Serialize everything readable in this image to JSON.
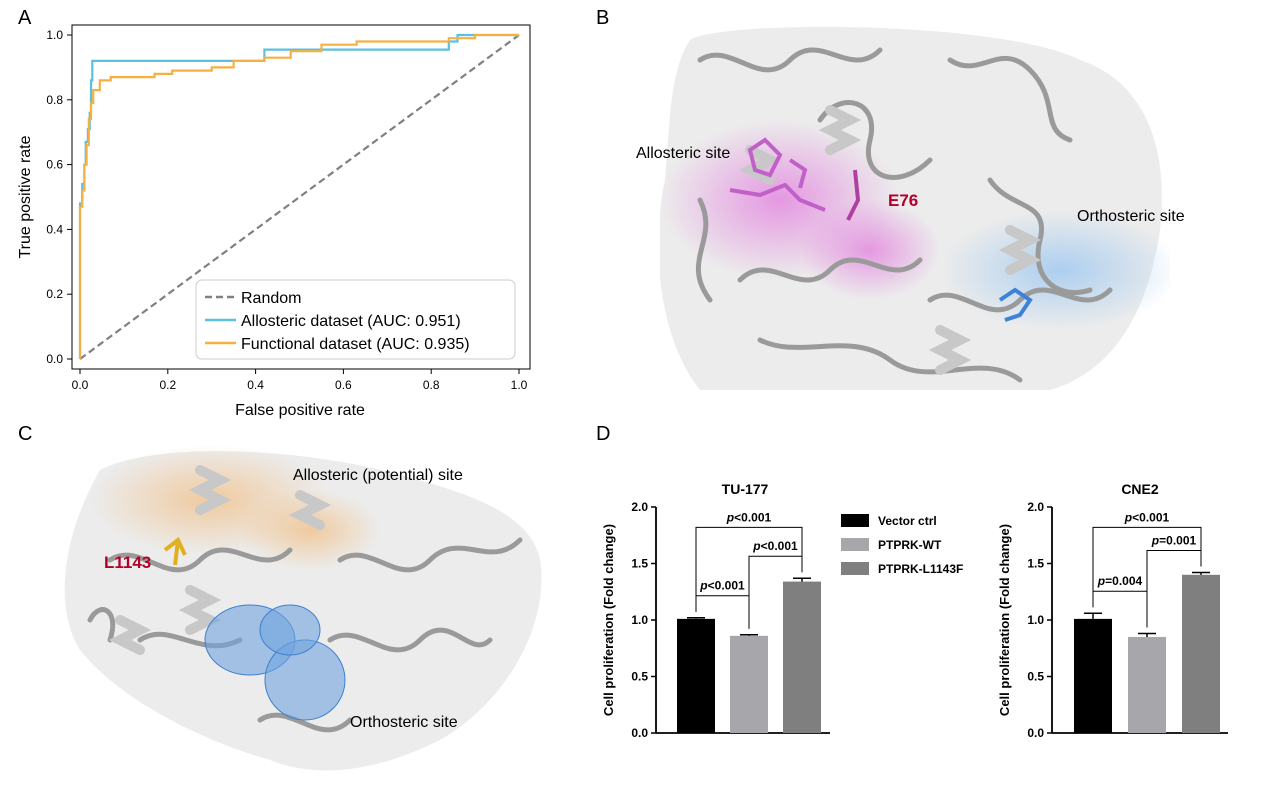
{
  "panels": {
    "a": "A",
    "b": "B",
    "c": "C",
    "d": "D"
  },
  "structure_b": {
    "allosteric_label": "Allosteric site",
    "residue_label": "E76",
    "orthosteric_label": "Orthosteric site",
    "colors": {
      "allosteric": "#e48ee0",
      "orthosteric": "#a9cdf0",
      "ligand": "#c060c8",
      "residue": "#b2002b"
    }
  },
  "structure_c": {
    "allosteric_label": "Allosteric (potential) site",
    "residue_label": "L1143",
    "orthosteric_label": "Orthosteric site",
    "colors": {
      "allosteric": "#f3d6b3",
      "orthosteric": "#3e7fd0",
      "residue": "#b2002b"
    }
  },
  "chart_data": [
    {
      "type": "line",
      "panel": "A",
      "xlabel": "False positive rate",
      "ylabel": "True positive rate",
      "xlim": [
        0,
        1
      ],
      "ylim": [
        0,
        1
      ],
      "xticks": [
        "0.0",
        "0.2",
        "0.4",
        "0.6",
        "0.8",
        "1.0"
      ],
      "yticks": [
        "0.0",
        "0.2",
        "0.4",
        "0.6",
        "0.8",
        "1.0"
      ],
      "legend_position": "lower-right",
      "series": [
        {
          "name": "Random",
          "color": "#808080",
          "style": "dashed",
          "points": [
            [
              0,
              0
            ],
            [
              1,
              1
            ]
          ]
        },
        {
          "name": "Allosteric dataset (AUC: 0.951)",
          "color": "#5bc0de",
          "style": "solid",
          "points": [
            [
              0,
              0
            ],
            [
              0,
              0.48
            ],
            [
              0.005,
              0.48
            ],
            [
              0.005,
              0.54
            ],
            [
              0.01,
              0.54
            ],
            [
              0.01,
              0.6
            ],
            [
              0.013,
              0.6
            ],
            [
              0.013,
              0.67
            ],
            [
              0.018,
              0.67
            ],
            [
              0.018,
              0.71
            ],
            [
              0.022,
              0.71
            ],
            [
              0.022,
              0.76
            ],
            [
              0.025,
              0.76
            ],
            [
              0.025,
              0.86
            ],
            [
              0.028,
              0.86
            ],
            [
              0.028,
              0.92
            ],
            [
              0.42,
              0.92
            ],
            [
              0.42,
              0.955
            ],
            [
              0.84,
              0.955
            ],
            [
              0.84,
              0.98
            ],
            [
              0.86,
              0.98
            ],
            [
              0.86,
              1.0
            ],
            [
              1,
              1
            ]
          ]
        },
        {
          "name": "Functional dataset (AUC: 0.935)",
          "color": "#f5b041",
          "style": "solid",
          "points": [
            [
              0,
              0
            ],
            [
              0,
              0.47
            ],
            [
              0.005,
              0.47
            ],
            [
              0.005,
              0.52
            ],
            [
              0.01,
              0.52
            ],
            [
              0.01,
              0.6
            ],
            [
              0.015,
              0.6
            ],
            [
              0.015,
              0.66
            ],
            [
              0.02,
              0.66
            ],
            [
              0.02,
              0.74
            ],
            [
              0.025,
              0.74
            ],
            [
              0.025,
              0.79
            ],
            [
              0.03,
              0.79
            ],
            [
              0.03,
              0.83
            ],
            [
              0.045,
              0.83
            ],
            [
              0.045,
              0.86
            ],
            [
              0.07,
              0.86
            ],
            [
              0.07,
              0.87
            ],
            [
              0.17,
              0.87
            ],
            [
              0.17,
              0.88
            ],
            [
              0.21,
              0.88
            ],
            [
              0.21,
              0.89
            ],
            [
              0.3,
              0.89
            ],
            [
              0.3,
              0.9
            ],
            [
              0.35,
              0.9
            ],
            [
              0.35,
              0.92
            ],
            [
              0.42,
              0.92
            ],
            [
              0.42,
              0.93
            ],
            [
              0.48,
              0.93
            ],
            [
              0.48,
              0.95
            ],
            [
              0.55,
              0.95
            ],
            [
              0.55,
              0.97
            ],
            [
              0.63,
              0.97
            ],
            [
              0.63,
              0.98
            ],
            [
              0.84,
              0.98
            ],
            [
              0.84,
              0.99
            ],
            [
              0.9,
              0.99
            ],
            [
              0.9,
              1.0
            ],
            [
              1,
              1
            ]
          ]
        }
      ]
    },
    {
      "type": "bar",
      "panel": "D",
      "title": "TU-177",
      "ylabel": "Cell proliferation (Fold change)",
      "ylim": [
        0,
        2
      ],
      "yticks": [
        "0.0",
        "0.5",
        "1.0",
        "1.5",
        "2.0"
      ],
      "categories": [
        "Vector ctrl",
        "PTPRK-WT",
        "PTPRK-L1143F"
      ],
      "values": [
        1.01,
        0.86,
        1.34
      ],
      "errors": [
        0.01,
        0.01,
        0.03
      ],
      "colors": [
        "#000000",
        "#a6a6ab",
        "#7f7f7f"
      ],
      "comparisons": [
        {
          "a": 0,
          "b": 1,
          "label": "p<0.001"
        },
        {
          "a": 1,
          "b": 2,
          "label": "p<0.001"
        },
        {
          "a": 0,
          "b": 2,
          "label": "p<0.001"
        }
      ]
    },
    {
      "type": "bar",
      "panel": "D",
      "title": "CNE2",
      "ylabel": "Cell proliferation (Fold change)",
      "ylim": [
        0,
        2
      ],
      "yticks": [
        "0.0",
        "0.5",
        "1.0",
        "1.5",
        "2.0"
      ],
      "categories": [
        "Vector ctrl",
        "PTPRK-WT",
        "PTPRK-L1143F"
      ],
      "values": [
        1.01,
        0.85,
        1.4
      ],
      "errors": [
        0.05,
        0.03,
        0.02
      ],
      "colors": [
        "#000000",
        "#a6a6ab",
        "#7f7f7f"
      ],
      "comparisons": [
        {
          "a": 0,
          "b": 1,
          "label": "p=0.004"
        },
        {
          "a": 1,
          "b": 2,
          "label": "p=0.001"
        },
        {
          "a": 0,
          "b": 2,
          "label": "p<0.001"
        }
      ]
    }
  ],
  "bar_legend": [
    "Vector ctrl",
    "PTPRK-WT",
    "PTPRK-L1143F"
  ]
}
